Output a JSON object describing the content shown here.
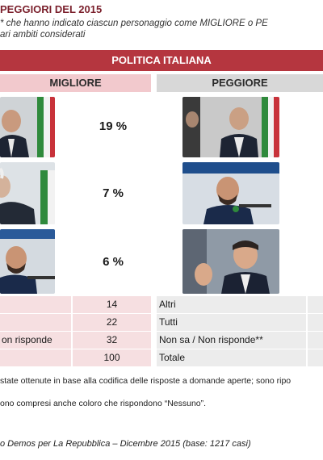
{
  "header": {
    "title": "PEGGIORI DEL 2015",
    "subtitle_line1": "* che hanno indicato ciascun personaggio come MIGLIORE o PE",
    "subtitle_line2": "ari ambiti considerati"
  },
  "section": {
    "title": "POLITICA ITALIANA"
  },
  "columns": {
    "best": "MIGLIORE",
    "worst": "PEGGIORE"
  },
  "ranks": [
    {
      "percent": "19 %"
    },
    {
      "percent": "7 %"
    },
    {
      "percent": "6 %"
    }
  ],
  "summary_rows": [
    {
      "left_label": "",
      "left_value": "14",
      "right_label": "Altri"
    },
    {
      "left_label": "",
      "left_value": "22",
      "right_label": "Tutti"
    },
    {
      "left_label": "on risponde",
      "left_value": "32",
      "right_label": "Non sa / Non risponde**"
    },
    {
      "left_label": "",
      "left_value": "100",
      "right_label": "Totale"
    }
  ],
  "notes": {
    "note1": "state ottenute in base alla codifica delle risposte a domande aperte; sono ripo",
    "note2": "ono compresi anche coloro che rispondono “Nessuno”."
  },
  "source": "o Demos per La Repubblica – Dicembre 2015 (base: 1217 casi)",
  "colors": {
    "band": "#b5363f",
    "best_bg": "#f2c9cd",
    "worst_bg": "#d8d8d8",
    "title": "#7a1f2b"
  }
}
